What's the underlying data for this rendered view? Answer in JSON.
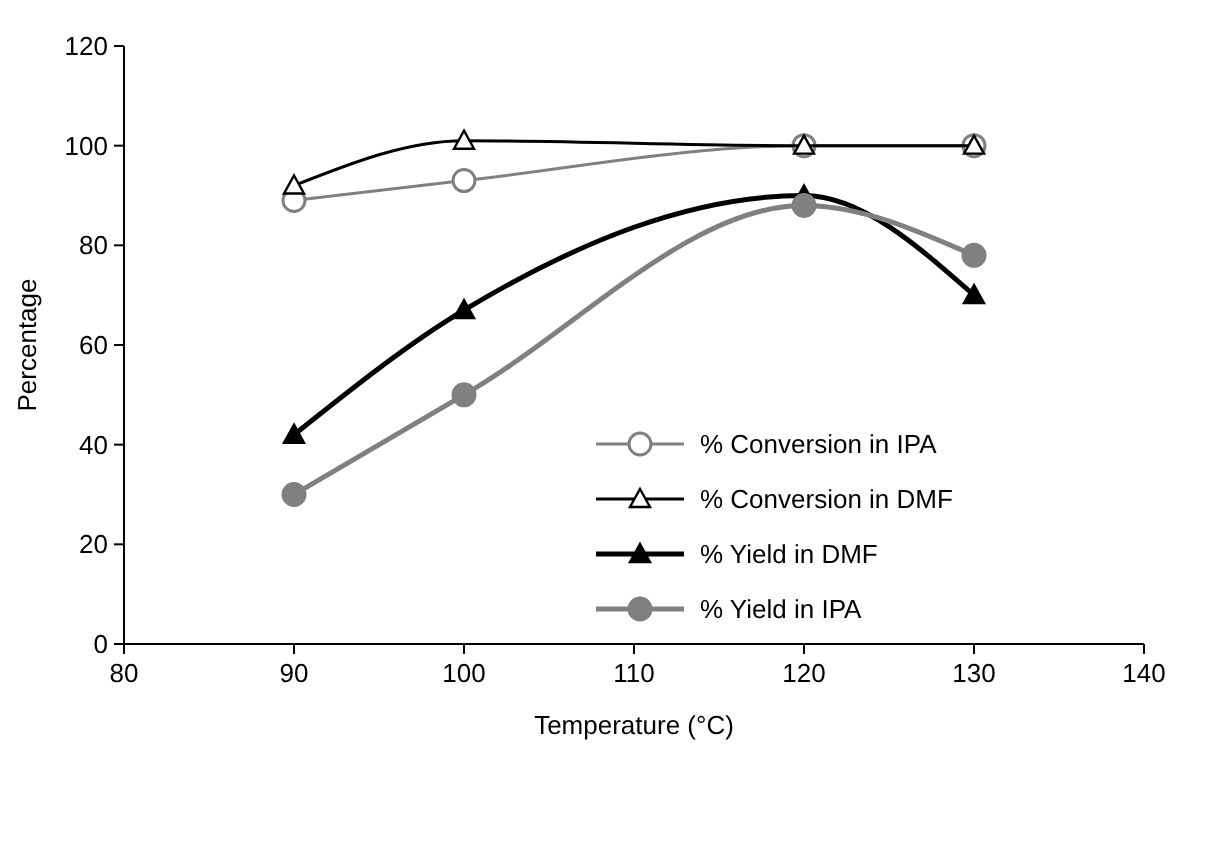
{
  "chart_data": {
    "type": "line",
    "xlabel": "Temperature (°C)",
    "ylabel": "Percentage",
    "x": [
      90,
      100,
      120,
      130
    ],
    "xlim": [
      80,
      140
    ],
    "xticks": [
      80,
      90,
      100,
      110,
      120,
      130,
      140
    ],
    "ylim": [
      0,
      120
    ],
    "yticks": [
      0,
      20,
      40,
      60,
      80,
      100,
      120
    ],
    "grid": false,
    "legend": "bottom right",
    "line_style": "solid",
    "series": [
      {
        "name": "% Conversion in IPA",
        "color": "#808080",
        "marker": "circle",
        "values": [
          89,
          93,
          100,
          100
        ]
      },
      {
        "name": "% Conversion in DMF",
        "color": "#000000",
        "marker": "triangle",
        "values": [
          92,
          101,
          100,
          100
        ]
      },
      {
        "name": "% Yield in DMF",
        "color": "#000000",
        "marker": "triangle",
        "values": [
          42,
          67,
          90,
          70
        ]
      },
      {
        "name": "% Yield in IPA",
        "color": "#808080",
        "marker": "circle",
        "values": [
          30,
          50,
          88,
          78
        ]
      }
    ]
  }
}
